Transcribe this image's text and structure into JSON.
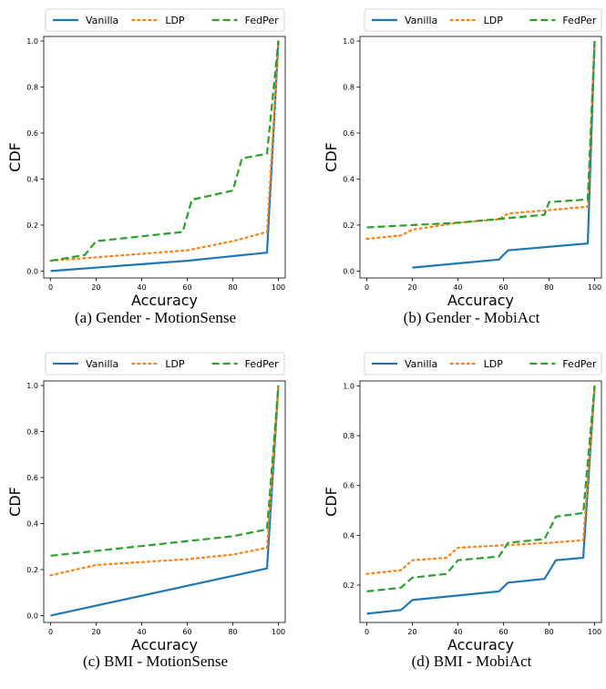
{
  "colors": {
    "Vanilla": "#1f77b4",
    "LDP": "#ff7f0e",
    "FedPer": "#2ca02c"
  },
  "legend": {
    "labels": [
      "Vanilla",
      "LDP",
      "FedPer"
    ]
  },
  "chart_data": [
    {
      "type": "line",
      "caption": "(a) Gender - MotionSense",
      "xlabel": "Accuracy",
      "ylabel": "CDF",
      "xlim": [
        -3,
        103
      ],
      "ylim": [
        -0.03,
        1.02
      ],
      "xticks": [
        0,
        20,
        40,
        60,
        80,
        100
      ],
      "yticks": [
        0.0,
        0.2,
        0.4,
        0.6,
        0.8,
        1.0
      ],
      "grid": false,
      "legend_position": "top",
      "series": [
        {
          "name": "Vanilla",
          "style": "solid",
          "x": [
            0,
            60,
            95,
            100
          ],
          "y": [
            0.0,
            0.045,
            0.08,
            1.0
          ]
        },
        {
          "name": "LDP",
          "style": "dotted",
          "x": [
            0,
            20,
            40,
            60,
            80,
            95,
            100
          ],
          "y": [
            0.045,
            0.06,
            0.075,
            0.09,
            0.13,
            0.17,
            1.0
          ]
        },
        {
          "name": "FedPer",
          "style": "dashed",
          "x": [
            0,
            15,
            20,
            58,
            62,
            80,
            84,
            95,
            100
          ],
          "y": [
            0.045,
            0.07,
            0.13,
            0.17,
            0.31,
            0.35,
            0.49,
            0.51,
            1.0
          ]
        }
      ]
    },
    {
      "type": "line",
      "caption": "(b) Gender - MobiAct",
      "xlabel": "Accuracy",
      "ylabel": "CDF",
      "xlim": [
        -3,
        103
      ],
      "ylim": [
        -0.03,
        1.02
      ],
      "xticks": [
        0,
        20,
        40,
        60,
        80,
        100
      ],
      "yticks": [
        0.0,
        0.2,
        0.4,
        0.6,
        0.8,
        1.0
      ],
      "grid": false,
      "legend_position": "top",
      "series": [
        {
          "name": "Vanilla",
          "style": "solid",
          "x": [
            20,
            58,
            62,
            97,
            100
          ],
          "y": [
            0.015,
            0.05,
            0.09,
            0.12,
            1.0
          ]
        },
        {
          "name": "LDP",
          "style": "dotted",
          "x": [
            0,
            15,
            20,
            40,
            58,
            62,
            80,
            97,
            100
          ],
          "y": [
            0.14,
            0.155,
            0.18,
            0.21,
            0.225,
            0.25,
            0.265,
            0.28,
            1.0
          ]
        },
        {
          "name": "FedPer",
          "style": "dashed",
          "x": [
            0,
            40,
            78,
            80,
            95,
            97,
            100
          ],
          "y": [
            0.19,
            0.21,
            0.245,
            0.3,
            0.31,
            0.31,
            1.0
          ]
        }
      ]
    },
    {
      "type": "line",
      "caption": "(c) BMI - MotionSense",
      "xlabel": "Accuracy",
      "ylabel": "CDF",
      "xlim": [
        -3,
        103
      ],
      "ylim": [
        -0.03,
        1.02
      ],
      "xticks": [
        0,
        20,
        40,
        60,
        80,
        100
      ],
      "yticks": [
        0.0,
        0.2,
        0.4,
        0.6,
        0.8,
        1.0
      ],
      "grid": false,
      "legend_position": "top",
      "series": [
        {
          "name": "Vanilla",
          "style": "solid",
          "x": [
            0,
            95,
            100
          ],
          "y": [
            0.0,
            0.205,
            1.0
          ]
        },
        {
          "name": "LDP",
          "style": "dotted",
          "x": [
            0,
            20,
            60,
            80,
            95,
            100
          ],
          "y": [
            0.175,
            0.22,
            0.245,
            0.265,
            0.295,
            1.0
          ]
        },
        {
          "name": "FedPer",
          "style": "dashed",
          "x": [
            0,
            80,
            95,
            100
          ],
          "y": [
            0.26,
            0.345,
            0.375,
            1.0
          ]
        }
      ]
    },
    {
      "type": "line",
      "caption": "(d) BMI - MobiAct",
      "xlabel": "Accuracy",
      "ylabel": "CDF",
      "xlim": [
        -3,
        103
      ],
      "ylim": [
        0.05,
        1.02
      ],
      "xticks": [
        0,
        20,
        40,
        60,
        80,
        100
      ],
      "yticks": [
        0.2,
        0.4,
        0.6,
        0.8,
        1.0
      ],
      "grid": false,
      "legend_position": "top",
      "series": [
        {
          "name": "Vanilla",
          "style": "solid",
          "x": [
            0,
            15,
            20,
            58,
            62,
            78,
            83,
            95,
            100
          ],
          "y": [
            0.085,
            0.1,
            0.14,
            0.175,
            0.21,
            0.225,
            0.3,
            0.31,
            1.0
          ]
        },
        {
          "name": "LDP",
          "style": "dotted",
          "x": [
            0,
            15,
            20,
            35,
            40,
            60,
            80,
            95,
            100
          ],
          "y": [
            0.245,
            0.26,
            0.3,
            0.31,
            0.35,
            0.36,
            0.37,
            0.38,
            1.0
          ]
        },
        {
          "name": "FedPer",
          "style": "dashed",
          "x": [
            0,
            15,
            20,
            35,
            40,
            58,
            62,
            78,
            83,
            95,
            100
          ],
          "y": [
            0.175,
            0.19,
            0.23,
            0.245,
            0.3,
            0.315,
            0.37,
            0.385,
            0.475,
            0.49,
            1.0
          ]
        }
      ]
    }
  ]
}
